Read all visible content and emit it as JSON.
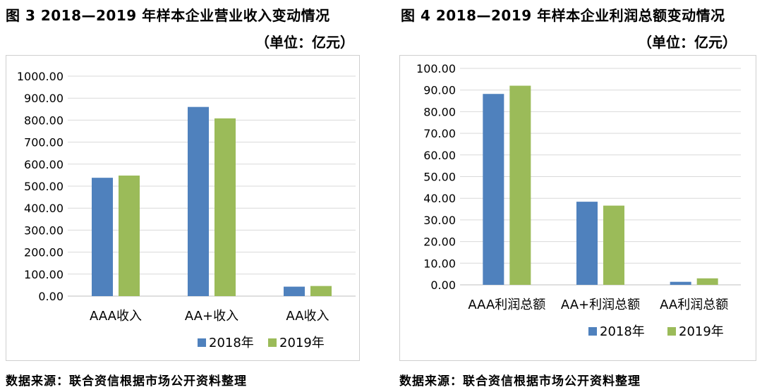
{
  "charts": [
    {
      "title": "图 3   2018—2019 年样本企业营业收入变动情况",
      "unit": "（单位：亿元）",
      "source": "数据来源：联合资信根据市场公开资料整理"
    },
    {
      "title": "图 4   2018—2019 年样本企业利润总额变动情况",
      "unit": "（单位：亿元）",
      "source": "数据来源：联合资信根据市场公开资料整理"
    }
  ],
  "chart_data": [
    {
      "type": "bar",
      "title": "图 3   2018—2019 年样本企业营业收入变动情况",
      "unit": "（单位：亿元）",
      "categories": [
        "AAA收入",
        "AA+收入",
        "AA收入"
      ],
      "series": [
        {
          "name": "2018年",
          "color": "#4f81bd",
          "values": [
            538,
            860,
            43
          ]
        },
        {
          "name": "2019年",
          "color": "#9bbb59",
          "values": [
            548,
            808,
            46
          ]
        }
      ],
      "ylim": [
        0,
        1000
      ],
      "yticks": [
        "0.00",
        "100.00",
        "200.00",
        "300.00",
        "400.00",
        "500.00",
        "600.00",
        "700.00",
        "800.00",
        "900.00",
        "1000.00"
      ],
      "grid": true,
      "legend": "bottom"
    },
    {
      "type": "bar",
      "title": "图 4   2018—2019 年样本企业利润总额变动情况",
      "unit": "（单位：亿元）",
      "categories": [
        "AAA利润总额",
        "AA+利润总额",
        "AA利润总额"
      ],
      "series": [
        {
          "name": "2018年",
          "color": "#4f81bd",
          "values": [
            88.2,
            38.4,
            1.4
          ]
        },
        {
          "name": "2019年",
          "color": "#9bbb59",
          "values": [
            92,
            36.6,
            3.0
          ]
        }
      ],
      "ylim": [
        0,
        100
      ],
      "yticks": [
        "0.00",
        "10.00",
        "20.00",
        "30.00",
        "40.00",
        "50.00",
        "60.00",
        "70.00",
        "80.00",
        "90.00",
        "100.00"
      ],
      "grid": true,
      "legend": "bottom"
    }
  ]
}
